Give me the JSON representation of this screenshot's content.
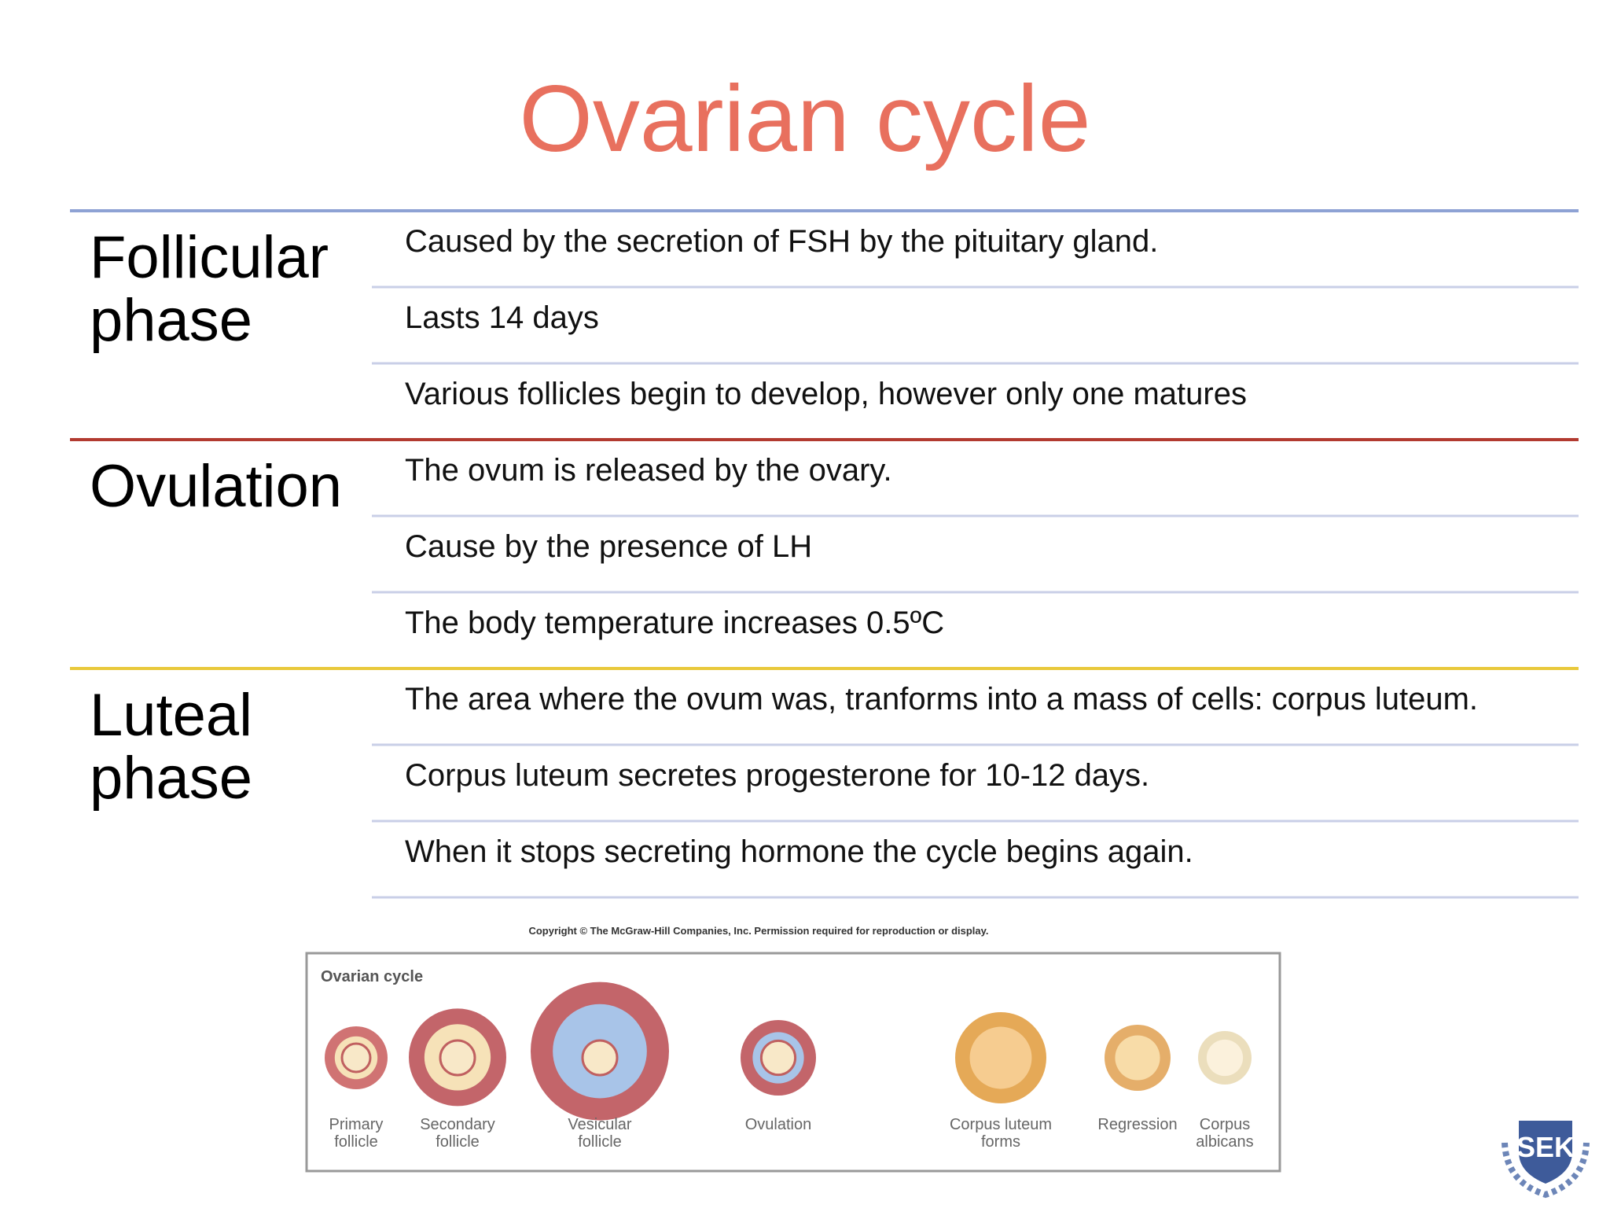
{
  "title": "Ovarian cycle",
  "phases": [
    {
      "label": [
        "Follicular",
        "phase"
      ],
      "items": [
        "Caused by the secretion of FSH by the pituitary gland.",
        "Lasts 14 days",
        "Various follicles begin to develop, however only one matures"
      ]
    },
    {
      "label": [
        "Ovulation"
      ],
      "items": [
        "The ovum is released by the ovary.",
        "Cause by the presence of LH",
        "The body temperature increases 0.5ºC"
      ]
    },
    {
      "label": [
        "Luteal",
        "phase"
      ],
      "items": [
        "The area where the ovum was, tranforms into a mass of cells: corpus luteum.",
        "Corpus luteum secretes progesterone for 10-12 days.",
        "When it stops secreting hormone the cycle begins again."
      ]
    }
  ],
  "figure": {
    "copyright": "Copyright © The McGraw-Hill Companies, Inc. Permission required for reproduction or display.",
    "title": "Ovarian cycle",
    "stages": [
      [
        "Primary",
        "follicle"
      ],
      [
        "Secondary",
        "follicle"
      ],
      [
        "Vesicular",
        "follicle"
      ],
      [
        "Ovulation"
      ],
      [
        "Corpus luteum",
        "forms"
      ],
      [
        "Regression"
      ],
      [
        "Corpus",
        "albicans"
      ]
    ]
  },
  "logo": "SEK"
}
